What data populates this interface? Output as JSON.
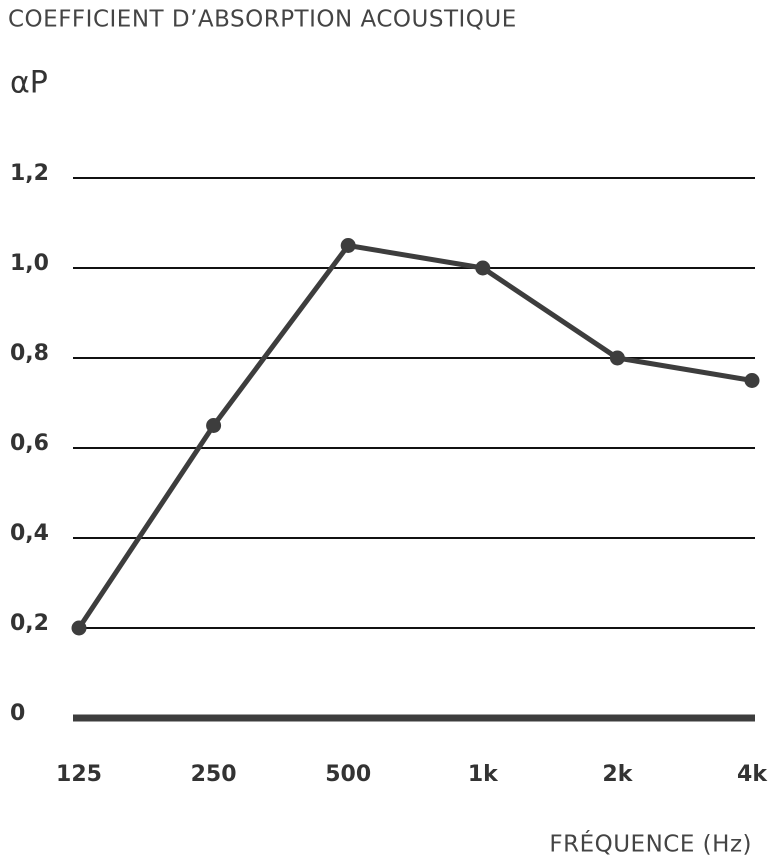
{
  "chart_data": {
    "type": "line",
    "title": "COEFFICIENT D’ABSORPTION ACOUSTIQUE",
    "y_label": "αP",
    "x_label": "FRÉQUENCE (Hz)",
    "categories": [
      "125",
      "250",
      "500",
      "1k",
      "2k",
      "4k"
    ],
    "values": [
      0.2,
      0.65,
      1.05,
      1.0,
      0.8,
      0.75
    ],
    "color": "#3d3d3d",
    "ylim": [
      0,
      1.2
    ],
    "yticks": [
      0,
      {
        "value": 0.2,
        "label": "0,2"
      },
      {
        "value": 0.4,
        "label": "0,4"
      },
      {
        "value": 0.6,
        "label": "0,6"
      },
      {
        "value": 0.8,
        "label": "0,8"
      },
      {
        "value": 1.0,
        "label": "1,0"
      },
      {
        "value": 1.2,
        "label": "1,2"
      }
    ],
    "grid": true
  }
}
